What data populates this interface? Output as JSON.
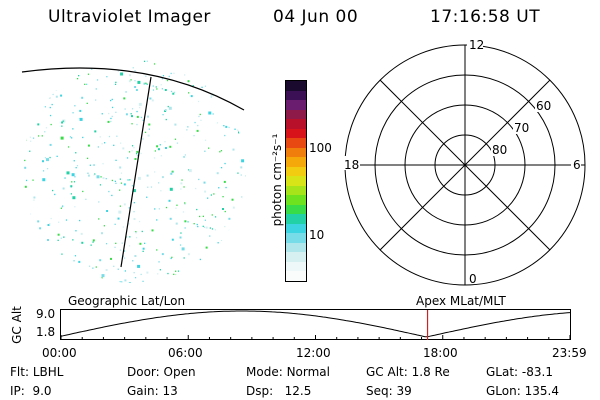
{
  "header": {
    "instrument": "Ultraviolet Imager",
    "date": "04 Jun 00",
    "time": "17:16:58 UT"
  },
  "colorbar": {
    "label": "photon cm⁻²s⁻¹",
    "ticks": [
      "100",
      "10"
    ],
    "colors": [
      "#1a0a2e",
      "#3b1055",
      "#6a1c6e",
      "#8e1a4a",
      "#b8102a",
      "#d8141a",
      "#e84812",
      "#f07e0c",
      "#f5a80a",
      "#f2cc10",
      "#d8e418",
      "#a8e41a",
      "#6ee21e",
      "#38dc48",
      "#22d2a6",
      "#3cd4e0",
      "#78dce8",
      "#aee6ec",
      "#d6f0f2",
      "#eef8f8",
      "#fafcfc"
    ]
  },
  "polar": {
    "mlt_labels": {
      "top": "12",
      "left": "18",
      "right": "6",
      "bottom": "0"
    },
    "lat_labels": [
      "60",
      "70",
      "80"
    ]
  },
  "timeline": {
    "left_label": "Geographic Lat/Lon",
    "right_label": "Apex MLat/MLT",
    "axis_label": "GC Alt",
    "y_ticks": [
      "9.0",
      "1.8"
    ],
    "x_ticks": [
      "00:00",
      "06:00",
      "12:00",
      "18:00",
      "23:59"
    ],
    "marker_time": "17:17",
    "marker_color": "#cc2222"
  },
  "status": {
    "flt": {
      "label": "Flt:",
      "value": "LBHL"
    },
    "ip": {
      "label": "IP:",
      "value": "9.0"
    },
    "door": {
      "label": "Door:",
      "value": "Open"
    },
    "gain": {
      "label": "Gain:",
      "value": "13"
    },
    "mode": {
      "label": "Mode:",
      "value": "Normal"
    },
    "dsp": {
      "label": "Dsp:",
      "value": "12.5"
    },
    "gcalt": {
      "label": "GC Alt:",
      "value": "1.8 Re"
    },
    "seq": {
      "label": "Seq:",
      "value": "39"
    },
    "glat": {
      "label": "GLat:",
      "value": "-83.1"
    },
    "glon": {
      "label": "GLon:",
      "value": "135.4"
    }
  }
}
